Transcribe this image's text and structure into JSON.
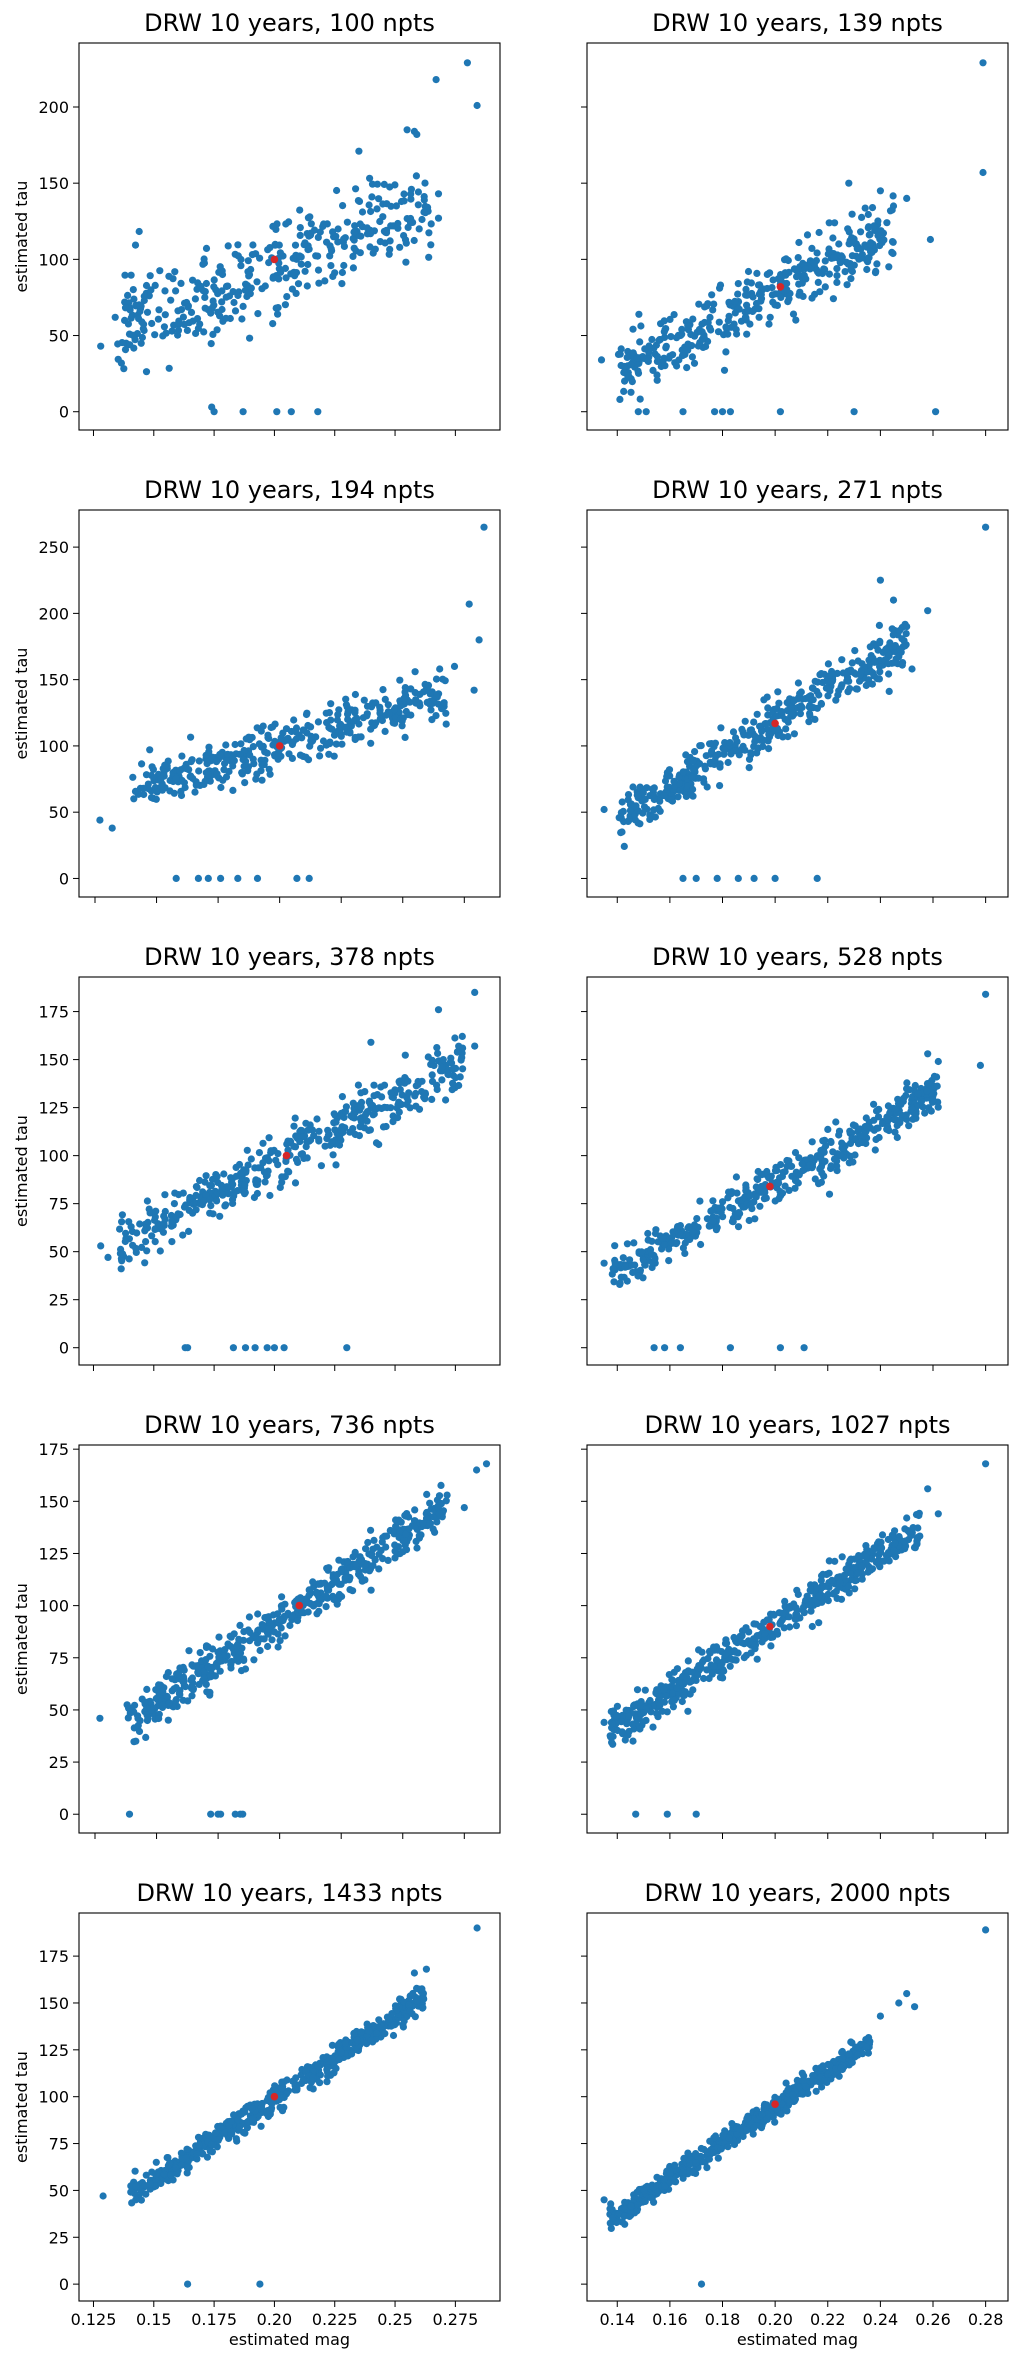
{
  "colors": {
    "points": "#1f77b4",
    "truth": "#d62728",
    "axes": "#000000"
  },
  "chart_data": [
    {
      "type": "scatter",
      "title": "DRW 10 years, 100 npts",
      "xlabel": "",
      "ylabel": "estimated tau",
      "xlim": [
        0.119,
        0.2935
      ],
      "ylim": [
        -12,
        242
      ],
      "xticks": [
        0.125,
        0.15,
        0.175,
        0.2,
        0.225,
        0.25,
        0.275
      ],
      "yticks": [
        0,
        50,
        100,
        150,
        200
      ],
      "show_xticklabels": false,
      "show_yticklabels": true,
      "truth": {
        "x": 0.2,
        "y": 100
      },
      "outliers": [
        [
          0.128,
          43
        ],
        [
          0.14,
          44
        ],
        [
          0.134,
          62
        ],
        [
          0.174,
          3
        ],
        [
          0.175,
          0
        ],
        [
          0.187,
          0
        ],
        [
          0.201,
          0
        ],
        [
          0.207,
          0
        ],
        [
          0.218,
          0
        ],
        [
          0.28,
          229
        ],
        [
          0.284,
          201
        ],
        [
          0.267,
          218
        ],
        [
          0.258,
          184
        ],
        [
          0.259,
          182
        ],
        [
          0.255,
          185
        ],
        [
          0.262,
          131
        ],
        [
          0.268,
          143
        ],
        [
          0.268,
          127
        ],
        [
          0.26,
          120
        ],
        [
          0.235,
          171
        ]
      ],
      "cloud": {
        "n": 360,
        "x0": 0.135,
        "x1": 0.265,
        "a": -25,
        "b": 600,
        "sd": 16,
        "seed": 11
      }
    },
    {
      "type": "scatter",
      "title": "DRW 10 years, 139 npts",
      "xlabel": "",
      "ylabel": "",
      "xlim": [
        0.1285,
        0.2885
      ],
      "ylim": [
        -12,
        242
      ],
      "xticks": [
        0.14,
        0.16,
        0.18,
        0.2,
        0.22,
        0.24,
        0.26,
        0.28
      ],
      "yticks": [
        0,
        50,
        100,
        150,
        200
      ],
      "show_xticklabels": false,
      "show_yticklabels": false,
      "truth": {
        "x": 0.202,
        "y": 82
      },
      "outliers": [
        [
          0.134,
          34
        ],
        [
          0.148,
          0
        ],
        [
          0.151,
          0
        ],
        [
          0.165,
          0
        ],
        [
          0.177,
          0
        ],
        [
          0.18,
          0
        ],
        [
          0.183,
          0
        ],
        [
          0.202,
          0
        ],
        [
          0.23,
          0
        ],
        [
          0.261,
          0
        ],
        [
          0.279,
          229
        ],
        [
          0.279,
          157
        ],
        [
          0.259,
          113
        ],
        [
          0.25,
          140
        ],
        [
          0.24,
          145
        ],
        [
          0.245,
          135
        ],
        [
          0.237,
          134
        ],
        [
          0.228,
          150
        ]
      ],
      "cloud": {
        "n": 380,
        "x0": 0.14,
        "x1": 0.245,
        "a": -93,
        "b": 866,
        "sd": 10,
        "seed": 23
      }
    },
    {
      "type": "scatter",
      "title": "DRW 10 years, 194 npts",
      "xlabel": "",
      "ylabel": "estimated tau",
      "xlim": [
        0.1185,
        0.2895
      ],
      "ylim": [
        -14,
        278
      ],
      "xticks": [
        0.125,
        0.15,
        0.175,
        0.2,
        0.225,
        0.25,
        0.275
      ],
      "yticks": [
        0,
        50,
        100,
        150,
        200,
        250
      ],
      "show_xticklabels": false,
      "show_yticklabels": true,
      "truth": {
        "x": 0.2,
        "y": 100
      },
      "outliers": [
        [
          0.127,
          44
        ],
        [
          0.132,
          38
        ],
        [
          0.158,
          0
        ],
        [
          0.167,
          0
        ],
        [
          0.171,
          0
        ],
        [
          0.176,
          0
        ],
        [
          0.183,
          0
        ],
        [
          0.191,
          0
        ],
        [
          0.207,
          0
        ],
        [
          0.212,
          0
        ],
        [
          0.283,
          265
        ],
        [
          0.277,
          207
        ],
        [
          0.281,
          180
        ],
        [
          0.279,
          142
        ],
        [
          0.271,
          160
        ],
        [
          0.265,
          158
        ],
        [
          0.255,
          156
        ]
      ],
      "cloud": {
        "n": 380,
        "x0": 0.14,
        "x1": 0.268,
        "a": -13,
        "b": 563,
        "sd": 9,
        "seed": 37
      }
    },
    {
      "type": "scatter",
      "title": "DRW 10 years, 271 npts",
      "xlabel": "",
      "ylabel": "",
      "xlim": [
        0.1285,
        0.2885
      ],
      "ylim": [
        -14,
        278
      ],
      "xticks": [
        0.14,
        0.16,
        0.18,
        0.2,
        0.22,
        0.24,
        0.26,
        0.28
      ],
      "yticks": [
        0,
        50,
        100,
        150,
        200,
        250
      ],
      "show_xticklabels": false,
      "show_yticklabels": false,
      "truth": {
        "x": 0.2,
        "y": 117
      },
      "outliers": [
        [
          0.135,
          52
        ],
        [
          0.165,
          0
        ],
        [
          0.17,
          0
        ],
        [
          0.178,
          0
        ],
        [
          0.186,
          0
        ],
        [
          0.192,
          0
        ],
        [
          0.2,
          0
        ],
        [
          0.216,
          0
        ],
        [
          0.28,
          265
        ],
        [
          0.258,
          202
        ],
        [
          0.24,
          225
        ],
        [
          0.245,
          210
        ],
        [
          0.25,
          190
        ],
        [
          0.252,
          158
        ],
        [
          0.243,
          162
        ]
      ],
      "cloud": {
        "n": 420,
        "x0": 0.14,
        "x1": 0.25,
        "a": -128,
        "b": 1225,
        "sd": 9,
        "seed": 41
      }
    },
    {
      "type": "scatter",
      "title": "DRW 10 years, 378 npts",
      "xlabel": "",
      "ylabel": "estimated tau",
      "xlim": [
        0.119,
        0.2935
      ],
      "ylim": [
        -9,
        193
      ],
      "xticks": [
        0.125,
        0.15,
        0.175,
        0.2,
        0.225,
        0.25,
        0.275
      ],
      "yticks": [
        0,
        25,
        50,
        75,
        100,
        125,
        150,
        175
      ],
      "show_xticklabels": false,
      "show_yticklabels": true,
      "truth": {
        "x": 0.205,
        "y": 100
      },
      "outliers": [
        [
          0.128,
          53
        ],
        [
          0.131,
          47
        ],
        [
          0.163,
          0
        ],
        [
          0.164,
          0
        ],
        [
          0.183,
          0
        ],
        [
          0.188,
          0
        ],
        [
          0.192,
          0
        ],
        [
          0.197,
          0
        ],
        [
          0.2,
          0
        ],
        [
          0.204,
          0
        ],
        [
          0.23,
          0
        ],
        [
          0.283,
          185
        ],
        [
          0.283,
          157
        ],
        [
          0.268,
          176
        ],
        [
          0.24,
          159
        ],
        [
          0.278,
          156
        ],
        [
          0.27,
          150
        ]
      ],
      "cloud": {
        "n": 420,
        "x0": 0.135,
        "x1": 0.278,
        "a": -38,
        "b": 673,
        "sd": 7,
        "seed": 53
      }
    },
    {
      "type": "scatter",
      "title": "DRW 10 years, 528 npts",
      "xlabel": "",
      "ylabel": "",
      "xlim": [
        0.1285,
        0.2885
      ],
      "ylim": [
        -9,
        193
      ],
      "xticks": [
        0.14,
        0.16,
        0.18,
        0.2,
        0.22,
        0.24,
        0.26,
        0.28
      ],
      "yticks": [
        0,
        25,
        50,
        75,
        100,
        125,
        150,
        175
      ],
      "show_xticklabels": false,
      "show_yticklabels": false,
      "truth": {
        "x": 0.198,
        "y": 84
      },
      "outliers": [
        [
          0.135,
          44
        ],
        [
          0.154,
          0
        ],
        [
          0.158,
          0
        ],
        [
          0.164,
          0
        ],
        [
          0.183,
          0
        ],
        [
          0.202,
          0
        ],
        [
          0.211,
          0
        ],
        [
          0.28,
          184
        ],
        [
          0.278,
          147
        ],
        [
          0.262,
          149
        ],
        [
          0.258,
          153
        ]
      ],
      "cloud": {
        "n": 460,
        "x0": 0.138,
        "x1": 0.262,
        "a": -69,
        "b": 775,
        "sd": 5.5,
        "seed": 61
      }
    },
    {
      "type": "scatter",
      "title": "DRW 10 years, 736 npts",
      "xlabel": "",
      "ylabel": "estimated tau",
      "xlim": [
        0.1185,
        0.2895
      ],
      "ylim": [
        -9,
        177
      ],
      "xticks": [
        0.125,
        0.15,
        0.175,
        0.2,
        0.225,
        0.25,
        0.275
      ],
      "yticks": [
        0,
        25,
        50,
        75,
        100,
        125,
        150,
        175
      ],
      "show_xticklabels": false,
      "show_yticklabels": true,
      "truth": {
        "x": 0.208,
        "y": 100
      },
      "outliers": [
        [
          0.127,
          46
        ],
        [
          0.139,
          0
        ],
        [
          0.172,
          0
        ],
        [
          0.175,
          0
        ],
        [
          0.176,
          0
        ],
        [
          0.182,
          0
        ],
        [
          0.184,
          0
        ],
        [
          0.185,
          0
        ],
        [
          0.284,
          168
        ],
        [
          0.28,
          165
        ],
        [
          0.275,
          147
        ],
        [
          0.268,
          153
        ]
      ],
      "cloud": {
        "n": 480,
        "x0": 0.138,
        "x1": 0.268,
        "a": -67,
        "b": 802,
        "sd": 5,
        "seed": 71
      }
    },
    {
      "type": "scatter",
      "title": "DRW 10 years, 1027 npts",
      "xlabel": "",
      "ylabel": "",
      "xlim": [
        0.1285,
        0.2885
      ],
      "ylim": [
        -9,
        177
      ],
      "xticks": [
        0.14,
        0.16,
        0.18,
        0.2,
        0.22,
        0.24,
        0.26,
        0.28
      ],
      "yticks": [
        0,
        25,
        50,
        75,
        100,
        125,
        150,
        175
      ],
      "show_xticklabels": false,
      "show_yticklabels": false,
      "truth": {
        "x": 0.198,
        "y": 90
      },
      "outliers": [
        [
          0.135,
          44
        ],
        [
          0.147,
          0
        ],
        [
          0.159,
          0
        ],
        [
          0.17,
          0
        ],
        [
          0.28,
          168
        ],
        [
          0.262,
          144
        ],
        [
          0.258,
          156
        ],
        [
          0.25,
          142
        ]
      ],
      "cloud": {
        "n": 500,
        "x0": 0.137,
        "x1": 0.255,
        "a": -73,
        "b": 823,
        "sd": 4.5,
        "seed": 83
      }
    },
    {
      "type": "scatter",
      "title": "DRW 10 years, 1433 npts",
      "xlabel": "estimated mag",
      "ylabel": "estimated tau",
      "xlim": [
        0.119,
        0.2935
      ],
      "ylim": [
        -9,
        198
      ],
      "xticks": [
        0.125,
        0.15,
        0.175,
        0.2,
        0.225,
        0.25,
        0.275
      ],
      "yticks": [
        0,
        25,
        50,
        75,
        100,
        125,
        150,
        175
      ],
      "show_xticklabels": true,
      "show_yticklabels": true,
      "truth": {
        "x": 0.2,
        "y": 100
      },
      "outliers": [
        [
          0.129,
          47
        ],
        [
          0.164,
          0
        ],
        [
          0.194,
          0
        ],
        [
          0.284,
          190
        ],
        [
          0.263,
          168
        ],
        [
          0.258,
          166
        ]
      ],
      "cloud": {
        "n": 520,
        "x0": 0.14,
        "x1": 0.262,
        "a": -75,
        "b": 869,
        "sd": 3.8,
        "seed": 97
      }
    },
    {
      "type": "scatter",
      "title": "DRW 10 years, 2000 npts",
      "xlabel": "estimated mag",
      "ylabel": "",
      "xlim": [
        0.1285,
        0.2885
      ],
      "ylim": [
        -9,
        198
      ],
      "xticks": [
        0.14,
        0.16,
        0.18,
        0.2,
        0.22,
        0.24,
        0.26,
        0.28
      ],
      "yticks": [
        0,
        25,
        50,
        75,
        100,
        125,
        150,
        175
      ],
      "show_xticklabels": true,
      "show_yticklabels": false,
      "truth": {
        "x": 0.2,
        "y": 96
      },
      "outliers": [
        [
          0.135,
          45
        ],
        [
          0.172,
          0
        ],
        [
          0.28,
          189
        ],
        [
          0.25,
          155
        ],
        [
          0.253,
          148
        ],
        [
          0.247,
          150
        ],
        [
          0.24,
          143
        ]
      ],
      "cloud": {
        "n": 560,
        "x0": 0.137,
        "x1": 0.236,
        "a": -96,
        "b": 952,
        "sd": 3,
        "seed": 103
      }
    }
  ]
}
